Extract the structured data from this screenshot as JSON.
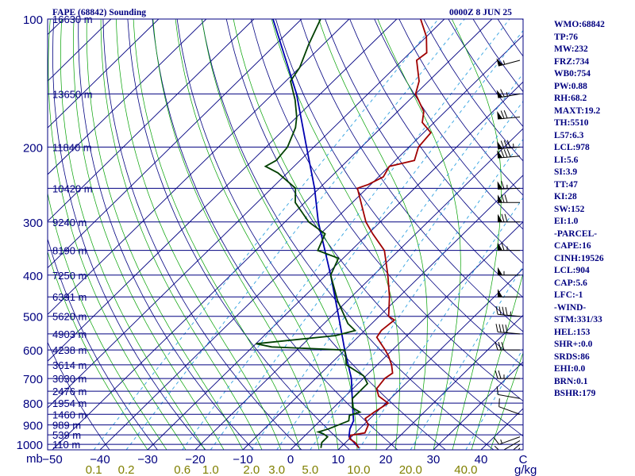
{
  "header": {
    "station": "FAPE (68842) Sounding",
    "time": "0000Z  8 JUN 25"
  },
  "indices": [
    "WMO:68842",
    "TP:76",
    "MW:232",
    "FRZ:734",
    "WB0:754",
    "PW:0.88",
    "RH:68.2",
    "MAXT:19.2",
    "TH:5510",
    "L57:6.3",
    "LCL:978",
    "LI:5.6",
    "SI:3.9",
    "TT:47",
    "KI:28",
    "SW:152",
    "EI:1.0",
    "-PARCEL-",
    "CAPE:16",
    "CINH:19526",
    "LCL:904",
    "CAP:5.6",
    "LFC:-1",
    "-WIND-",
    "STM:331/33",
    "HEL:153",
    "SHR+:0.0",
    "SRDS:86",
    "EHI:0.0",
    "BRN:0.1",
    "BSHR:179"
  ],
  "colors": {
    "isobar": "#000080",
    "isotherm": "#000080",
    "dry_adiabat": "#000080",
    "moist_adiabat": "#00a000",
    "mixing_ratio": "#2ea0e0",
    "temperature": "#a00000",
    "dewpoint": "#004000",
    "parcel": "#0000b0",
    "axis_text": "#000080",
    "mixing_text": "#808000",
    "wind": "#000000"
  },
  "chart_data": {
    "type": "skew-t",
    "pressure_axis": {
      "unit": "mb",
      "ticks": [
        100,
        200,
        300,
        400,
        500,
        600,
        700,
        800,
        900,
        1000
      ]
    },
    "temperature_axis": {
      "ticks": [
        -50,
        -40,
        -30,
        -20,
        -10,
        0,
        10,
        20,
        30,
        40
      ]
    },
    "mixing_ratio_axis": {
      "unit": "g/kg",
      "labels": [
        "0.1",
        "0.2",
        "0.6",
        "1.0",
        "2.0",
        "3.0",
        "5.0",
        "10.0",
        "20.0",
        "40.0"
      ],
      "values": [
        0.1,
        0.2,
        0.6,
        1.0,
        2.0,
        3.0,
        5.0,
        10.0,
        20.0,
        40.0
      ]
    },
    "height_labels": [
      {
        "p": 100,
        "label": "16630 m"
      },
      {
        "p": 150,
        "label": "13650 m"
      },
      {
        "p": 200,
        "label": "11840 m"
      },
      {
        "p": 250,
        "label": "10420 m"
      },
      {
        "p": 300,
        "label": "9240 m"
      },
      {
        "p": 350,
        "label": "8190 m"
      },
      {
        "p": 400,
        "label": "7250 m"
      },
      {
        "p": 450,
        "label": "6391 m"
      },
      {
        "p": 500,
        "label": "5620 m"
      },
      {
        "p": 550,
        "label": "4903 m"
      },
      {
        "p": 600,
        "label": "4238 m"
      },
      {
        "p": 650,
        "label": "3614 m"
      },
      {
        "p": 700,
        "label": "3030 m"
      },
      {
        "p": 750,
        "label": "2476 m"
      },
      {
        "p": 800,
        "label": "1954 m"
      },
      {
        "p": 850,
        "label": "1460 m"
      },
      {
        "p": 900,
        "label": "989 m"
      },
      {
        "p": 950,
        "label": "539 m"
      },
      {
        "p": 1000,
        "label": "110 m"
      }
    ],
    "temperature": [
      {
        "p": 1020,
        "t": 14.0
      },
      {
        "p": 990,
        "t": 12.0
      },
      {
        "p": 970,
        "t": 10.0
      },
      {
        "p": 952,
        "t": 9.5
      },
      {
        "p": 940,
        "t": 12.0
      },
      {
        "p": 900,
        "t": 11.0
      },
      {
        "p": 870,
        "t": 9.0
      },
      {
        "p": 840,
        "t": 9.5
      },
      {
        "p": 800,
        "t": 10.5
      },
      {
        "p": 770,
        "t": 7.0
      },
      {
        "p": 740,
        "t": 5.0
      },
      {
        "p": 700,
        "t": 4.5
      },
      {
        "p": 680,
        "t": 5.0
      },
      {
        "p": 650,
        "t": 3.0
      },
      {
        "p": 620,
        "t": 0.5
      },
      {
        "p": 600,
        "t": -1.5
      },
      {
        "p": 560,
        "t": -6.0
      },
      {
        "p": 540,
        "t": -6.5
      },
      {
        "p": 510,
        "t": -6.0
      },
      {
        "p": 500,
        "t": -8.0
      },
      {
        "p": 450,
        "t": -12.0
      },
      {
        "p": 400,
        "t": -17.0
      },
      {
        "p": 350,
        "t": -23.0
      },
      {
        "p": 320,
        "t": -29.0
      },
      {
        "p": 300,
        "t": -33.0
      },
      {
        "p": 250,
        "t": -42.0
      },
      {
        "p": 245,
        "t": -40.5
      },
      {
        "p": 235,
        "t": -39.0
      },
      {
        "p": 222,
        "t": -40.0
      },
      {
        "p": 215,
        "t": -36.0
      },
      {
        "p": 200,
        "t": -38.0
      },
      {
        "p": 185,
        "t": -38.5
      },
      {
        "p": 175,
        "t": -42.5
      },
      {
        "p": 165,
        "t": -44.5
      },
      {
        "p": 150,
        "t": -50.0
      },
      {
        "p": 140,
        "t": -52.0
      },
      {
        "p": 125,
        "t": -57.0
      },
      {
        "p": 120,
        "t": -56.5
      },
      {
        "p": 110,
        "t": -60.0
      },
      {
        "p": 100,
        "t": -65.0
      }
    ],
    "dewpoint": [
      {
        "p": 1020,
        "t": 6.0
      },
      {
        "p": 990,
        "t": 5.0
      },
      {
        "p": 960,
        "t": 5.0
      },
      {
        "p": 945,
        "t": 3.5
      },
      {
        "p": 935,
        "t": 2.0
      },
      {
        "p": 920,
        "t": 3.5
      },
      {
        "p": 880,
        "t": 6.0
      },
      {
        "p": 855,
        "t": 5.0
      },
      {
        "p": 840,
        "t": 6.5
      },
      {
        "p": 820,
        "t": 4.0
      },
      {
        "p": 780,
        "t": 2.0
      },
      {
        "p": 720,
        "t": 2.0
      },
      {
        "p": 690,
        "t": -0.5
      },
      {
        "p": 650,
        "t": -6.5
      },
      {
        "p": 620,
        "t": -8.5
      },
      {
        "p": 600,
        "t": -10.0
      },
      {
        "p": 590,
        "t": -26.0
      },
      {
        "p": 580,
        "t": -30.0
      },
      {
        "p": 555,
        "t": -15.0
      },
      {
        "p": 540,
        "t": -12.0
      },
      {
        "p": 520,
        "t": -15.0
      },
      {
        "p": 460,
        "t": -22.0
      },
      {
        "p": 400,
        "t": -29.0
      },
      {
        "p": 365,
        "t": -31.0
      },
      {
        "p": 350,
        "t": -37.0
      },
      {
        "p": 320,
        "t": -39.0
      },
      {
        "p": 300,
        "t": -45.0
      },
      {
        "p": 270,
        "t": -52.0
      },
      {
        "p": 250,
        "t": -55.0
      },
      {
        "p": 230,
        "t": -62.0
      },
      {
        "p": 222,
        "t": -66.0
      },
      {
        "p": 215,
        "t": -65.0
      },
      {
        "p": 200,
        "t": -65.5
      },
      {
        "p": 180,
        "t": -68.0
      },
      {
        "p": 170,
        "t": -70.0
      },
      {
        "p": 155,
        "t": -74.0
      },
      {
        "p": 140,
        "t": -79.0
      },
      {
        "p": 130,
        "t": -80.0
      },
      {
        "p": 115,
        "t": -83.0
      },
      {
        "p": 100,
        "t": -86.0
      }
    ],
    "parcel": [
      {
        "p": 1020,
        "t": 14.0
      },
      {
        "p": 980,
        "t": 11.0
      },
      {
        "p": 960,
        "t": 9.5
      },
      {
        "p": 920,
        "t": 8.0
      },
      {
        "p": 880,
        "t": 7.0
      },
      {
        "p": 800,
        "t": 3.0
      },
      {
        "p": 700,
        "t": -2.5
      },
      {
        "p": 600,
        "t": -10.0
      },
      {
        "p": 500,
        "t": -18.5
      },
      {
        "p": 400,
        "t": -29.0
      },
      {
        "p": 300,
        "t": -43.0
      },
      {
        "p": 250,
        "t": -51.0
      },
      {
        "p": 200,
        "t": -61.5
      },
      {
        "p": 150,
        "t": -75.0
      },
      {
        "p": 100,
        "t": -96.0
      }
    ],
    "wind_barbs": [
      {
        "p": 1020,
        "dir": 220,
        "spd": 5
      },
      {
        "p": 1000,
        "dir": 230,
        "spd": 10
      },
      {
        "p": 980,
        "dir": 240,
        "spd": 10
      },
      {
        "p": 960,
        "dir": 250,
        "spd": 15
      },
      {
        "p": 850,
        "dir": 290,
        "spd": 10
      },
      {
        "p": 780,
        "dir": 280,
        "spd": 10
      },
      {
        "p": 700,
        "dir": 270,
        "spd": 25
      },
      {
        "p": 600,
        "dir": 270,
        "spd": 30
      },
      {
        "p": 550,
        "dir": 275,
        "spd": 40
      },
      {
        "p": 500,
        "dir": 275,
        "spd": 45
      },
      {
        "p": 450,
        "dir": 270,
        "spd": 50
      },
      {
        "p": 400,
        "dir": 270,
        "spd": 55
      },
      {
        "p": 350,
        "dir": 270,
        "spd": 65
      },
      {
        "p": 300,
        "dir": 270,
        "spd": 70
      },
      {
        "p": 270,
        "dir": 270,
        "spd": 70
      },
      {
        "p": 250,
        "dir": 268,
        "spd": 65
      },
      {
        "p": 210,
        "dir": 265,
        "spd": 80
      },
      {
        "p": 200,
        "dir": 265,
        "spd": 85
      },
      {
        "p": 170,
        "dir": 265,
        "spd": 70
      },
      {
        "p": 150,
        "dir": 260,
        "spd": 65
      },
      {
        "p": 125,
        "dir": 255,
        "spd": 55
      }
    ]
  }
}
